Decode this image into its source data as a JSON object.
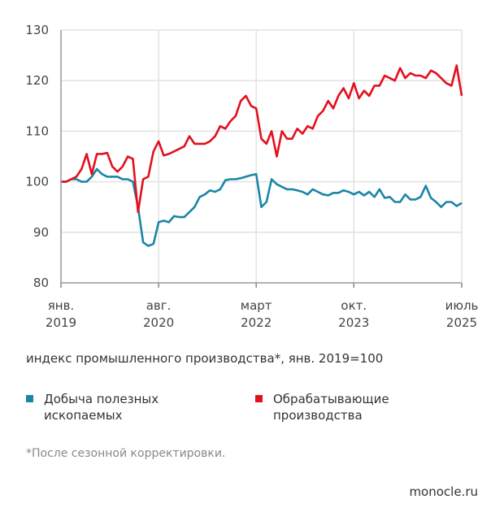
{
  "chart_data": {
    "type": "line",
    "title": "",
    "subtitle": "индекс промышленного производства*, янв. 2019=100",
    "ylim": [
      80,
      130
    ],
    "yticks": [
      80,
      90,
      100,
      110,
      120,
      130
    ],
    "x_months_range": [
      0,
      78
    ],
    "xticks": [
      {
        "month": 0,
        "line1": "янв.",
        "line2": "2019"
      },
      {
        "month": 19,
        "line1": "авг.",
        "line2": "2020"
      },
      {
        "month": 38,
        "line1": "март",
        "line2": "2022"
      },
      {
        "month": 57,
        "line1": "окт.",
        "line2": "2023"
      },
      {
        "month": 78,
        "line1": "июль",
        "line2": "2025"
      }
    ],
    "grid": true,
    "series": [
      {
        "name": "Добыча полезных ископаемых",
        "color": "#1a86a6",
        "values": [
          100,
          100,
          100.5,
          100.5,
          100,
          100,
          101,
          102.5,
          101.5,
          101,
          101,
          101,
          100.5,
          100.5,
          100,
          95,
          88,
          87.3,
          87.7,
          92,
          92.3,
          92,
          93.2,
          93,
          93,
          94,
          95,
          97,
          97.5,
          98.3,
          98,
          98.5,
          100.3,
          100.5,
          100.5,
          100.7,
          101,
          101.3,
          101.5,
          95,
          96,
          100.5,
          99.5,
          99,
          98.5,
          98.5,
          98.3,
          98,
          97.5,
          98.5,
          98,
          97.5,
          97.3,
          97.8,
          97.8,
          98.3,
          98,
          97.5,
          98,
          97.3,
          98,
          97,
          98.5,
          96.8,
          97,
          96,
          96,
          97.5,
          96.5,
          96.5,
          97,
          99.2,
          96.8,
          96,
          95,
          96,
          96,
          95.2,
          95.8
        ]
      },
      {
        "name": "Обрабатывающие производства",
        "color": "#e2101e",
        "values": [
          100,
          100,
          100.5,
          101,
          102.5,
          105.5,
          101.5,
          105.5,
          105.5,
          105.7,
          103,
          102,
          103,
          105,
          104.5,
          94,
          100.5,
          101,
          106,
          108,
          105.2,
          105.5,
          106,
          106.5,
          107,
          109,
          107.5,
          107.5,
          107.5,
          108,
          109,
          111,
          110.5,
          112,
          113,
          116,
          117,
          115,
          114.5,
          108.5,
          107.5,
          110,
          105,
          110,
          108.5,
          108.5,
          110.5,
          109.5,
          111,
          110.5,
          113,
          114,
          116,
          114.5,
          117,
          118.5,
          116.5,
          119.5,
          116.5,
          118,
          117,
          119,
          119,
          121,
          120.5,
          120,
          122.5,
          120.5,
          121.5,
          121,
          121,
          120.5,
          122,
          121.5,
          120.5,
          119.5,
          119,
          123,
          117
        ]
      }
    ]
  },
  "legend": [
    {
      "line1": "Добыча полезных",
      "line2": "ископаемых"
    },
    {
      "line1": "Обрабатывающие",
      "line2": "производства"
    }
  ],
  "footnote": "*После сезонной корректировки.",
  "brand": "monocle.ru"
}
